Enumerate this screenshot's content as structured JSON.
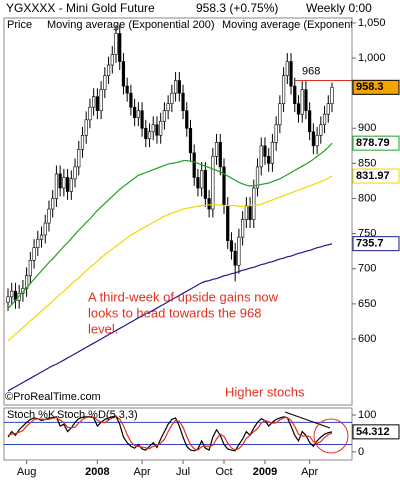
{
  "chart_data": [
    {
      "type": "candlestick",
      "title": "YGXXXX - Mini Gold Future",
      "quote": "958.3 (+0.75%)",
      "period": "Weekly 0:00",
      "price_label": "Price",
      "price_label_color": "#f5a300",
      "source": "©ProRealTime.com",
      "categories": [
        null,
        null,
        null,
        null,
        null,
        "Aug",
        null,
        null,
        null,
        null,
        null,
        null,
        null,
        null,
        null,
        null,
        null,
        null,
        null,
        null,
        null,
        null,
        null,
        null,
        "2008",
        null,
        null,
        null,
        null,
        null,
        null,
        null,
        null,
        null,
        null,
        null,
        "Apr",
        null,
        null,
        null,
        null,
        null,
        null,
        null,
        null,
        null,
        null,
        "Jul",
        null,
        null,
        null,
        null,
        null,
        null,
        null,
        null,
        null,
        null,
        "Oct",
        null,
        null,
        null,
        null,
        null,
        null,
        null,
        null,
        null,
        null,
        "2009",
        null,
        null,
        null,
        null,
        null,
        null,
        null,
        null,
        null,
        null,
        null,
        "Apr",
        null,
        null,
        null,
        null,
        null,
        null
      ],
      "open": [
        652,
        660,
        668,
        655,
        665,
        672,
        690,
        712,
        730,
        742,
        748,
        765,
        785,
        800,
        835,
        815,
        830,
        810,
        828,
        845,
        870,
        890,
        912,
        930,
        945,
        925,
        955,
        975,
        990,
        1005,
        1035,
        995,
        960,
        950,
        930,
        915,
        925,
        900,
        885,
        895,
        905,
        890,
        910,
        925,
        935,
        950,
        968,
        950,
        925,
        900,
        865,
        830,
        815,
        840,
        800,
        785,
        860,
        880,
        845,
        790,
        740,
        725,
        705,
        745,
        770,
        790,
        770,
        815,
        845,
        875,
        860,
        850,
        880,
        905,
        935,
        975,
        995,
        960,
        935,
        920,
        955,
        925,
        895,
        875,
        890,
        905,
        920,
        935
      ],
      "high": [
        672,
        680,
        680,
        677,
        684,
        702,
        724,
        742,
        754,
        760,
        777,
        797,
        812,
        847,
        847,
        842,
        842,
        840,
        857,
        882,
        902,
        924,
        942,
        957,
        957,
        967,
        987,
        1002,
        1017,
        1047,
        1047,
        1007,
        972,
        962,
        942,
        937,
        937,
        912,
        907,
        917,
        917,
        922,
        937,
        947,
        962,
        980,
        980,
        962,
        937,
        912,
        877,
        842,
        852,
        852,
        812,
        872,
        892,
        892,
        857,
        802,
        752,
        737,
        757,
        782,
        802,
        802,
        827,
        857,
        887,
        887,
        872,
        892,
        917,
        947,
        987,
        1007,
        1007,
        972,
        947,
        967,
        967,
        937,
        907,
        902,
        917,
        932,
        947,
        965
      ],
      "low": [
        640,
        648,
        643,
        643,
        653,
        660,
        678,
        700,
        718,
        730,
        736,
        753,
        773,
        788,
        803,
        803,
        798,
        798,
        816,
        833,
        858,
        878,
        900,
        918,
        913,
        913,
        943,
        963,
        978,
        993,
        983,
        948,
        938,
        918,
        903,
        903,
        888,
        873,
        873,
        883,
        878,
        878,
        898,
        913,
        923,
        938,
        938,
        913,
        888,
        853,
        818,
        803,
        803,
        788,
        773,
        773,
        848,
        833,
        778,
        728,
        713,
        682,
        693,
        733,
        758,
        758,
        758,
        803,
        833,
        848,
        838,
        838,
        868,
        893,
        923,
        963,
        948,
        923,
        908,
        908,
        913,
        883,
        863,
        863,
        878,
        893,
        908,
        923
      ],
      "close": [
        660,
        668,
        655,
        665,
        672,
        690,
        712,
        730,
        742,
        748,
        765,
        785,
        800,
        835,
        815,
        830,
        810,
        828,
        845,
        870,
        890,
        912,
        930,
        945,
        925,
        955,
        975,
        990,
        1005,
        1035,
        995,
        960,
        950,
        930,
        915,
        925,
        900,
        885,
        895,
        905,
        890,
        910,
        925,
        935,
        950,
        968,
        950,
        925,
        900,
        865,
        830,
        815,
        840,
        800,
        785,
        860,
        880,
        845,
        790,
        740,
        725,
        705,
        745,
        770,
        790,
        770,
        815,
        845,
        875,
        860,
        850,
        880,
        905,
        935,
        975,
        995,
        960,
        935,
        920,
        955,
        925,
        895,
        875,
        890,
        905,
        920,
        935,
        958.3
      ],
      "series": [
        {
          "color": "#22a022",
          "values": [
            643,
            649,
            655,
            661,
            667,
            673,
            679,
            685,
            691,
            697,
            703,
            709,
            714,
            720,
            726,
            732,
            737,
            743,
            749,
            755,
            760,
            766,
            771,
            777,
            783,
            788,
            793,
            798,
            803,
            808,
            813,
            817,
            821,
            825,
            829,
            833,
            835,
            837,
            839,
            841,
            843,
            845,
            847,
            849,
            850,
            851,
            852,
            854,
            854,
            853,
            852,
            850,
            848,
            846,
            844,
            842,
            840,
            838,
            835,
            832,
            829,
            826,
            823,
            821,
            819,
            818,
            818,
            819,
            820,
            821,
            822,
            824,
            826,
            828,
            831,
            834,
            837,
            840,
            843,
            846,
            849,
            852,
            856,
            860,
            864,
            868,
            873,
            878.79
          ]
        },
        {
          "name": "Moving average (Exponential",
          "color": "#f0d800",
          "values": [
            597,
            602,
            607,
            611,
            616,
            621,
            626,
            630,
            635,
            640,
            645,
            649,
            654,
            659,
            664,
            668,
            673,
            678,
            683,
            687,
            692,
            697,
            702,
            706,
            711,
            716,
            720,
            724,
            728,
            732,
            736,
            740,
            744,
            748,
            751,
            754,
            757,
            760,
            763,
            766,
            769,
            772,
            775,
            777,
            779,
            781,
            783,
            785,
            786,
            787,
            788,
            789,
            790,
            790,
            791,
            791,
            791,
            791,
            790,
            790,
            790,
            790,
            789,
            789,
            789,
            790,
            790,
            791,
            792,
            794,
            796,
            798,
            800,
            802,
            804,
            806,
            808,
            810,
            812,
            814,
            816,
            818,
            820,
            822,
            824,
            826,
            829,
            831.97
          ]
        },
        {
          "name": "Moving average (Exponential 200)",
          "color": "#1a1a8c",
          "values": [
            526,
            529,
            532,
            535,
            538,
            541,
            544,
            547,
            550,
            553,
            556,
            559,
            562,
            564,
            567,
            570,
            573,
            576,
            579,
            582,
            585,
            588,
            591,
            594,
            597,
            600,
            603,
            606,
            609,
            612,
            615,
            618,
            621,
            624,
            627,
            630,
            633,
            636,
            638,
            641,
            644,
            647,
            650,
            653,
            656,
            659,
            662,
            665,
            668,
            671,
            674,
            677,
            680,
            682,
            683,
            685,
            686,
            688,
            690,
            691,
            693,
            694,
            696,
            698,
            699,
            701,
            702,
            704,
            706,
            707,
            709,
            710,
            712,
            714,
            715,
            717,
            718,
            720,
            722,
            723,
            725,
            726,
            728,
            730,
            731,
            733,
            734,
            735.7
          ]
        }
      ],
      "target": 968,
      "target_color": "#e03020",
      "annotation": [
        "A third-week of upside gains now",
        "looks to head towards the 968",
        "level."
      ],
      "ylim": [
        506,
        1057
      ],
      "yticks": [
        600,
        650,
        700,
        750,
        800,
        850,
        900,
        {
          "value": 1000,
          "label": "1,000"
        },
        {
          "value": 1050,
          "label": "1,050"
        }
      ]
    },
    {
      "type": "line",
      "series": [
        {
          "name": "Stoch %K",
          "color": "#000000",
          "values": [
            40,
            55,
            45,
            60,
            70,
            80,
            88,
            92,
            90,
            85,
            88,
            92,
            93,
            95,
            70,
            75,
            55,
            65,
            80,
            90,
            94,
            95,
            96,
            92,
            70,
            80,
            88,
            92,
            95,
            97,
            75,
            40,
            25,
            15,
            10,
            20,
            8,
            5,
            15,
            25,
            12,
            35,
            55,
            75,
            88,
            92,
            70,
            40,
            15,
            5,
            3,
            8,
            30,
            10,
            5,
            40,
            60,
            45,
            20,
            8,
            5,
            3,
            20,
            35,
            55,
            45,
            65,
            80,
            90,
            85,
            70,
            80,
            88,
            92,
            95,
            93,
            70,
            45,
            30,
            55,
            45,
            25,
            15,
            30,
            40,
            48,
            52,
            54.312
          ]
        },
        {
          "name": "Stoch %D(5,3,3)",
          "color": "#e03020",
          "values": [
            45,
            48,
            50,
            53,
            58,
            70,
            79,
            87,
            90,
            89,
            88,
            88,
            91,
            93,
            86,
            79,
            67,
            65,
            67,
            78,
            88,
            93,
            95,
            94,
            86,
            81,
            79,
            87,
            92,
            95,
            89,
            71,
            47,
            27,
            17,
            15,
            13,
            11,
            9,
            15,
            17,
            24,
            34,
            55,
            73,
            85,
            83,
            67,
            42,
            20,
            8,
            5,
            14,
            16,
            15,
            18,
            35,
            48,
            42,
            24,
            11,
            5,
            9,
            19,
            37,
            45,
            55,
            63,
            78,
            85,
            82,
            78,
            79,
            87,
            92,
            93,
            86,
            69,
            48,
            43,
            43,
            42,
            28,
            23,
            28,
            39,
            47,
            51
          ]
        }
      ],
      "levels": [
        20,
        80
      ],
      "level_color": "#3040c0",
      "annotation": "Higher stochs",
      "ylim": [
        -22,
        119
      ],
      "yticks": [
        0,
        50,
        100
      ]
    }
  ]
}
